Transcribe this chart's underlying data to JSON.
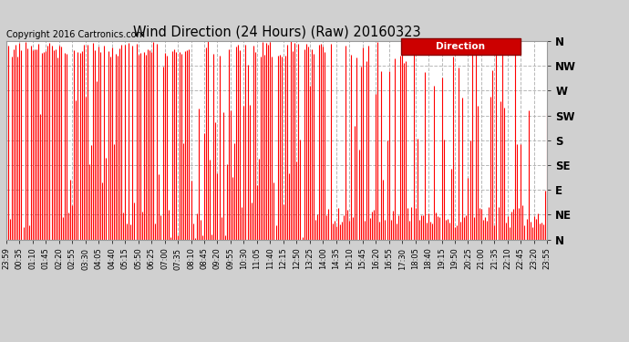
{
  "title": "Wind Direction (24 Hours) (Raw) 20160323",
  "copyright": "Copyright 2016 Cartronics.com",
  "legend_label": "Direction",
  "legend_bg": "#cc0000",
  "legend_text_color": "#ffffff",
  "line_color": "#ff0000",
  "fill_color": "#ff0000",
  "bg_color": "#d0d0d0",
  "plot_bg": "#ffffff",
  "grid_color": "#b0b0b0",
  "ytick_labels": [
    "N",
    "NE",
    "E",
    "SE",
    "S",
    "SW",
    "W",
    "NW",
    "N"
  ],
  "ytick_values": [
    0,
    45,
    90,
    135,
    180,
    225,
    270,
    315,
    360
  ],
  "ylim": [
    0,
    360
  ],
  "xtick_labels": [
    "23:59",
    "00:35",
    "01:10",
    "01:45",
    "02:20",
    "02:55",
    "03:30",
    "04:05",
    "04:40",
    "05:15",
    "05:50",
    "06:25",
    "07:00",
    "07:35",
    "08:10",
    "08:45",
    "09:20",
    "09:55",
    "10:30",
    "11:05",
    "11:40",
    "12:15",
    "12:50",
    "13:25",
    "14:00",
    "14:35",
    "15:10",
    "15:45",
    "16:20",
    "16:55",
    "17:30",
    "18:05",
    "18:40",
    "19:15",
    "19:50",
    "20:25",
    "21:00",
    "21:35",
    "22:10",
    "22:45",
    "23:20",
    "23:55"
  ],
  "num_points": 288,
  "seed": 7
}
